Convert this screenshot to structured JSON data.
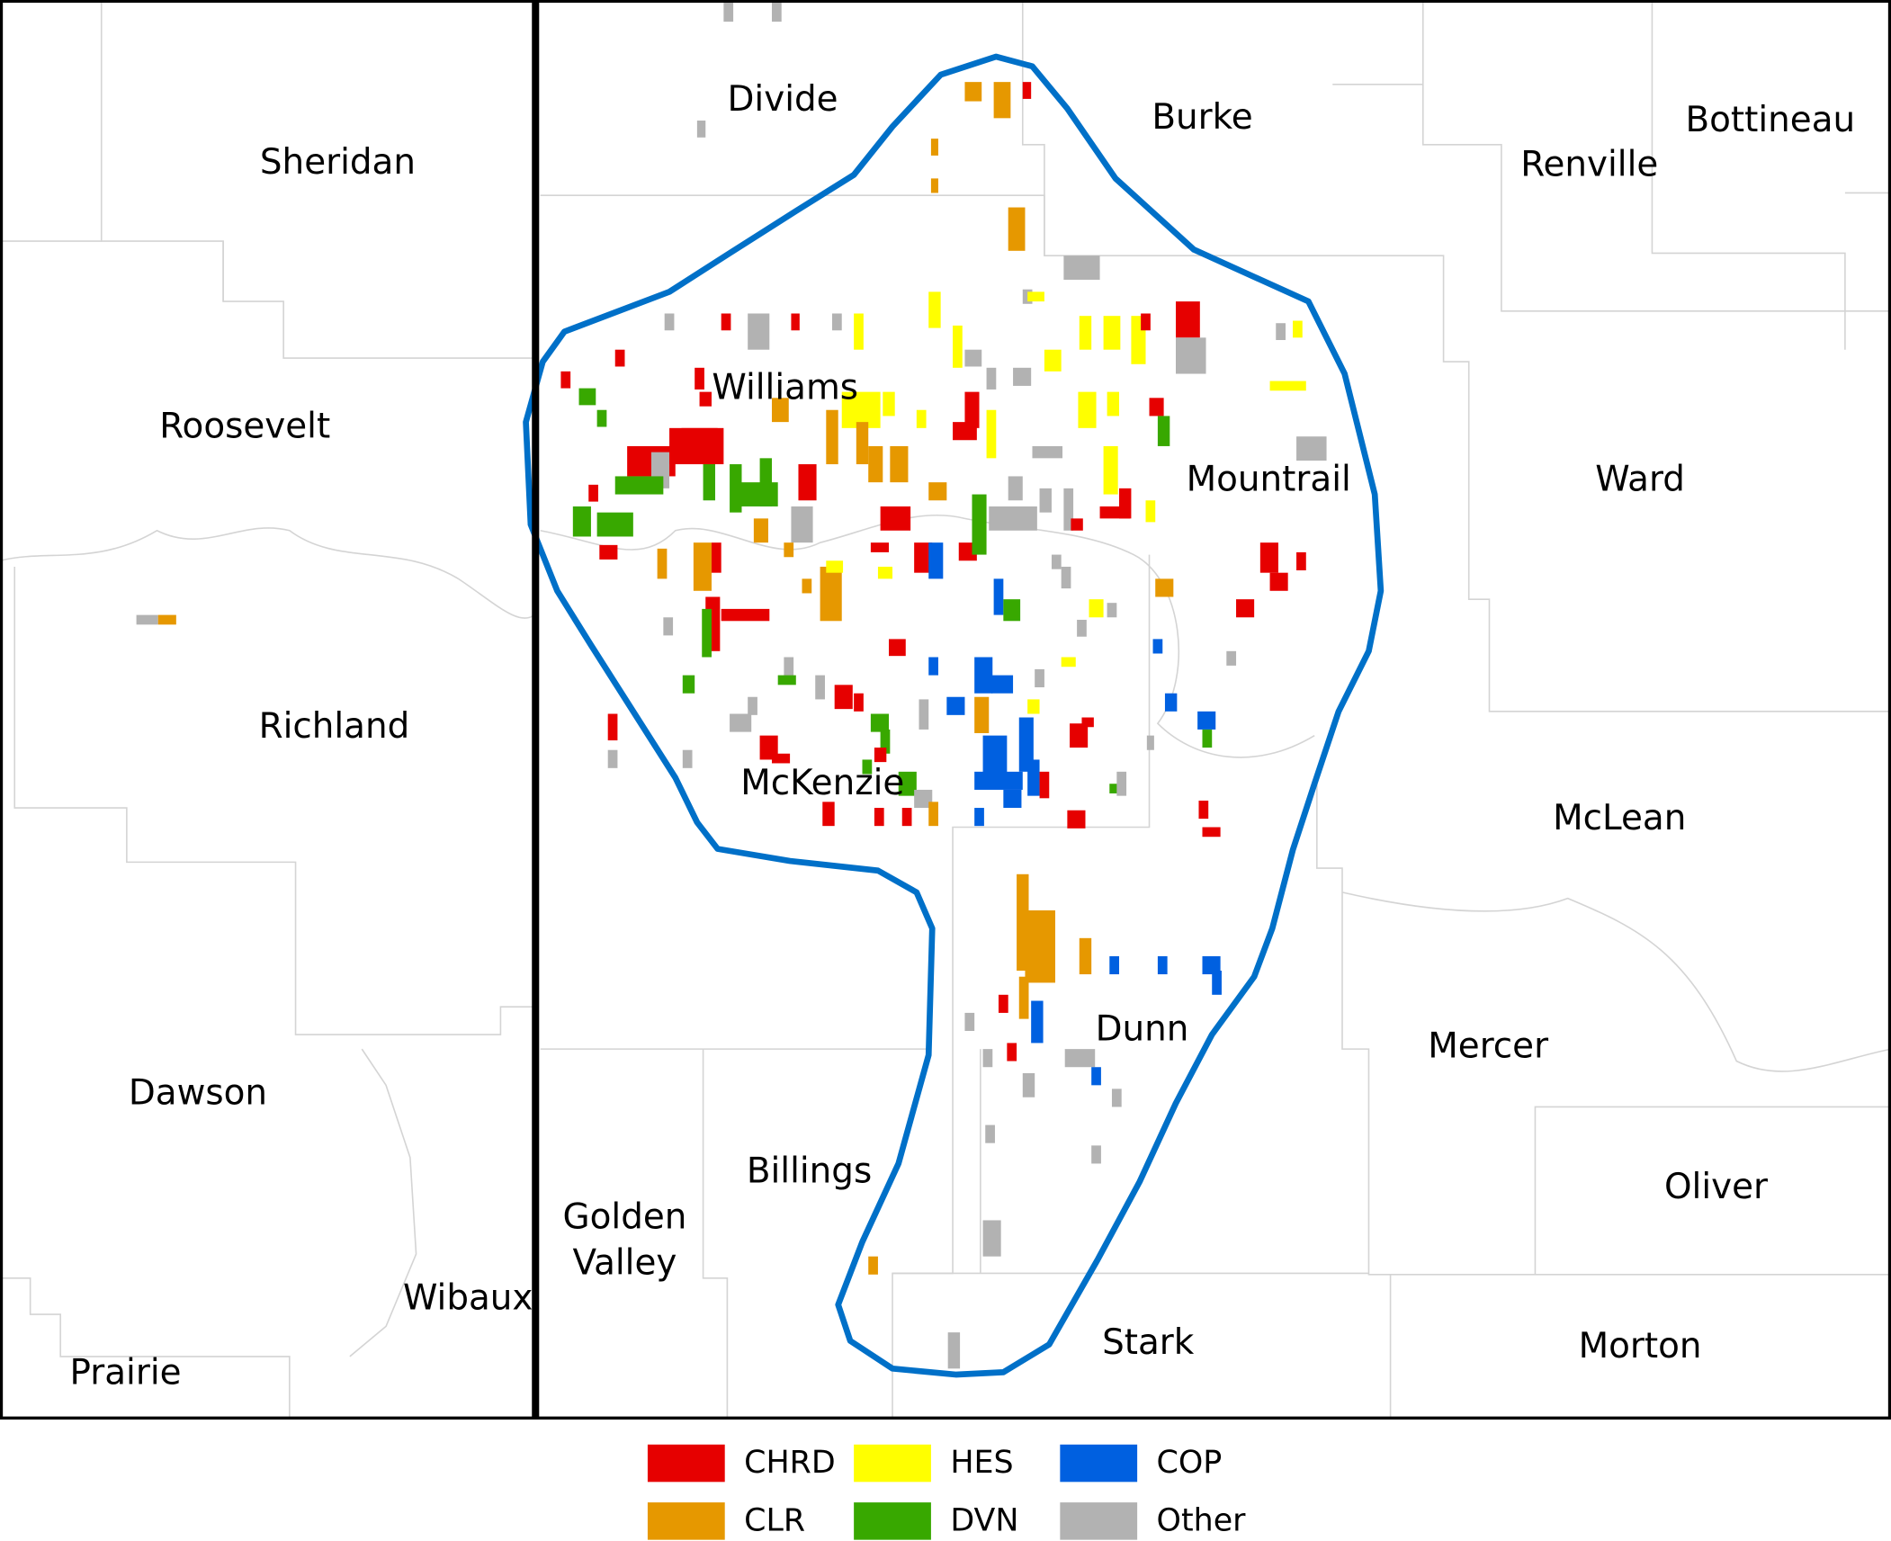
{
  "map": {
    "counties": [
      {
        "label": "Sheridan"
      },
      {
        "label": "Roosevelt"
      },
      {
        "label": "Richland"
      },
      {
        "label": "Dawson"
      },
      {
        "label": "Wibaux"
      },
      {
        "label": "Prairie"
      },
      {
        "label": "Divide"
      },
      {
        "label": "Burke"
      },
      {
        "label": "Renville"
      },
      {
        "label": "Bottineau"
      },
      {
        "label": "Williams"
      },
      {
        "label": "Mountrail"
      },
      {
        "label": "Ward"
      },
      {
        "label": "McKenzie"
      },
      {
        "label": "McLean"
      },
      {
        "label": "Dunn"
      },
      {
        "label": "Mercer"
      },
      {
        "label": "Billings"
      },
      {
        "lines": [
          "Golden",
          "Valley"
        ]
      },
      {
        "label": "Oliver"
      },
      {
        "label": "Stark"
      },
      {
        "label": "Morton"
      }
    ],
    "legend": [
      {
        "name": "CHRD",
        "color": "#e60000"
      },
      {
        "name": "HES",
        "color": "#ffff00"
      },
      {
        "name": "COP",
        "color": "#0060e0"
      },
      {
        "name": "CLR",
        "color": "#e69800"
      },
      {
        "name": "DVN",
        "color": "#38a800"
      },
      {
        "name": "Other",
        "color": "#b2b2b2"
      }
    ]
  }
}
